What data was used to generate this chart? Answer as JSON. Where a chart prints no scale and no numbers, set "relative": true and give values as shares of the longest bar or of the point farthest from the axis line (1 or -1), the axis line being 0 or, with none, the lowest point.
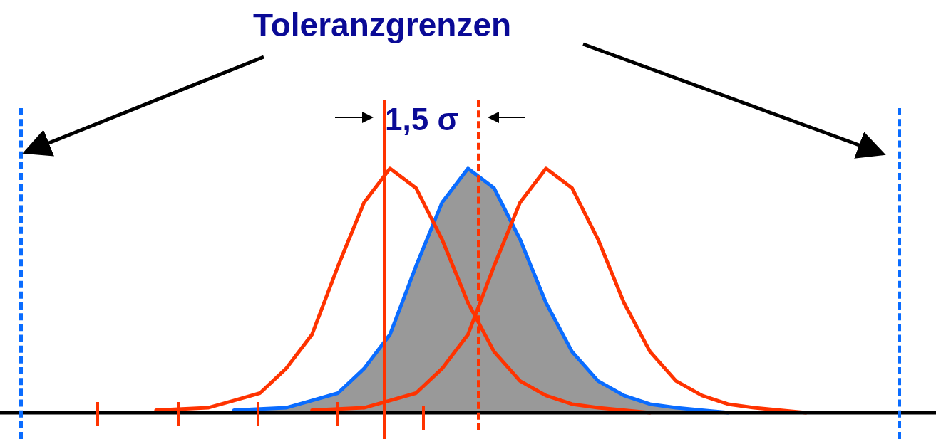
{
  "chart_data": {
    "type": "line",
    "title": "Toleranzgrenzen",
    "relative": true,
    "marker": "none",
    "annotations": [
      "1,5 σ"
    ],
    "categories": [
      null,
      null,
      null,
      null,
      null,
      null,
      null,
      null,
      null,
      null,
      null,
      null,
      null,
      null,
      null,
      null,
      null,
      null,
      null,
      null,
      null,
      null,
      null,
      null,
      null,
      null,
      null,
      null,
      null,
      null,
      null,
      null,
      null,
      null,
      null,
      null,
      null
    ],
    "series": [
      {
        "type": "area",
        "color": "#0a6cff",
        "values": [
          null,
          null,
          null,
          null,
          null,
          null,
          null,
          null,
          null,
          0.01,
          0.015,
          0.02,
          0.05,
          0.08,
          0.18,
          0.32,
          0.6,
          0.86,
          1,
          0.92,
          0.71,
          0.45,
          0.25,
          0.13,
          0.07,
          0.035,
          0.02,
          0.01,
          0,
          null,
          null,
          null,
          null,
          null,
          null,
          null,
          null
        ]
      },
      {
        "type": "line",
        "color": "#ff3300",
        "values": [
          null,
          null,
          null,
          null,
          null,
          null,
          0.01,
          0.015,
          0.02,
          0.05,
          0.08,
          0.18,
          0.32,
          0.6,
          0.86,
          1,
          0.92,
          0.71,
          0.45,
          0.25,
          0.13,
          0.07,
          0.035,
          0.02,
          0.01,
          0,
          null,
          null,
          null,
          null,
          null,
          null,
          null,
          null,
          null,
          null,
          null
        ]
      },
      {
        "type": "line",
        "color": "#ff3300",
        "values": [
          null,
          null,
          null,
          null,
          null,
          null,
          null,
          null,
          null,
          null,
          null,
          null,
          0.01,
          0.015,
          0.02,
          0.05,
          0.08,
          0.18,
          0.32,
          0.6,
          0.86,
          1,
          0.92,
          0.71,
          0.45,
          0.25,
          0.13,
          0.07,
          0.035,
          0.02,
          0.01,
          0,
          null,
          null,
          null,
          null,
          null
        ]
      }
    ]
  }
}
